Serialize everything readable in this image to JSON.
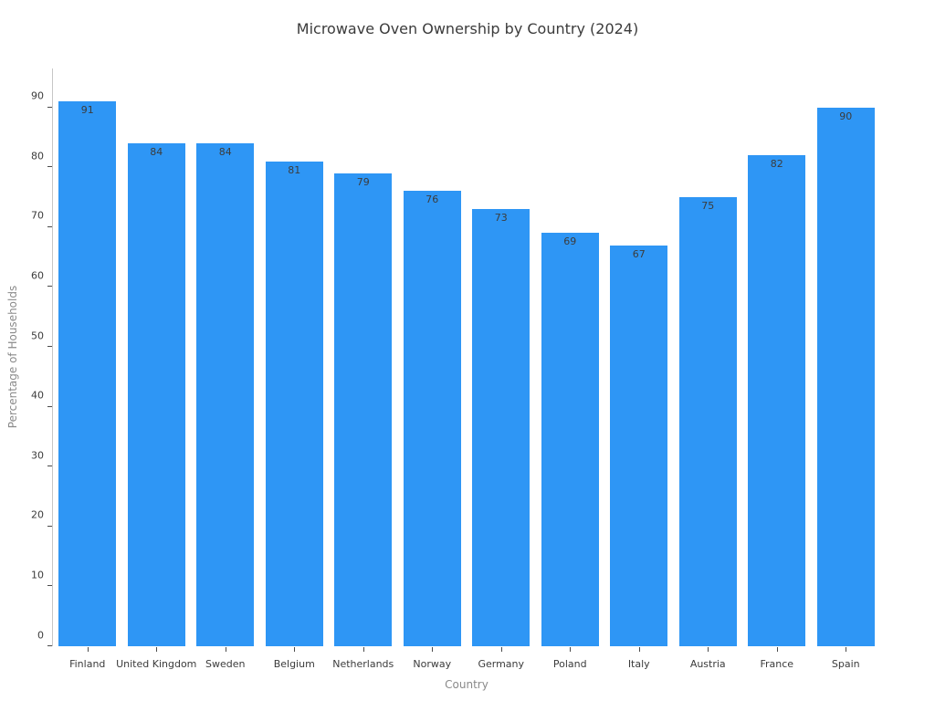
{
  "chart_data": {
    "type": "bar",
    "title": "Microwave Oven Ownership by Country (2024)",
    "xlabel": "Country",
    "ylabel": "Percentage of Households",
    "categories": [
      "Finland",
      "United Kingdom",
      "Sweden",
      "Belgium",
      "Netherlands",
      "Norway",
      "Germany",
      "Poland",
      "Italy",
      "Austria",
      "France",
      "Spain"
    ],
    "values": [
      91,
      84,
      84,
      81,
      79,
      76,
      73,
      69,
      67,
      75,
      82,
      90
    ],
    "yticks": [
      0,
      10,
      20,
      30,
      40,
      50,
      60,
      70,
      80,
      90
    ],
    "ylim": [
      0,
      96.5
    ],
    "grid": false,
    "legend": false,
    "value_labels_shown": true,
    "colors": {
      "bar": "#2E96F5",
      "bar_value_label": "#3c3c3c",
      "title_text": "#3b3b3b",
      "tick_label": "#3b3b3b",
      "axis_label": "#8a8a8a",
      "spine": "#c6c6c6"
    }
  }
}
